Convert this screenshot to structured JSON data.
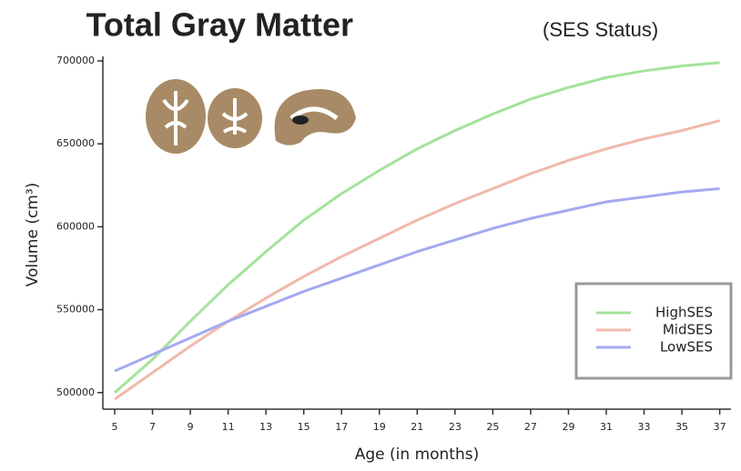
{
  "chart_data": {
    "type": "line",
    "title": "Total Gray Matter",
    "subtitle": "(SES Status)",
    "x_label": "Age (in months)",
    "y_label": "Volume (cm³)",
    "x": [
      5,
      7,
      9,
      11,
      13,
      15,
      17,
      19,
      21,
      23,
      25,
      27,
      29,
      31,
      33,
      35,
      37
    ],
    "series": [
      {
        "name": "HighSES",
        "color": "#a3e39b",
        "values": [
          500000,
          520000,
          543000,
          565000,
          585000,
          604000,
          620000,
          634000,
          647000,
          658000,
          668000,
          677000,
          684000,
          690000,
          694000,
          697000,
          699000
        ]
      },
      {
        "name": "MidSES",
        "color": "#f0b9aa",
        "values": [
          496000,
          512000,
          528000,
          543000,
          557000,
          570000,
          582000,
          593000,
          604000,
          614000,
          623000,
          632000,
          640000,
          647000,
          653000,
          658000,
          664000
        ]
      },
      {
        "name": "LowSES",
        "color": "#a4a9f0",
        "values": [
          513000,
          523000,
          533000,
          543000,
          552000,
          561000,
          569000,
          577000,
          585000,
          592000,
          599000,
          605000,
          610000,
          615000,
          618000,
          621000,
          623000
        ]
      }
    ],
    "xlim": [
      4.5,
      37.5
    ],
    "xticks": [
      5,
      7,
      9,
      11,
      13,
      15,
      17,
      19,
      21,
      23,
      25,
      27,
      29,
      31,
      33,
      35,
      37
    ],
    "ylim": [
      490000,
      700000
    ],
    "yticks": [
      500000,
      550000,
      600000,
      650000,
      700000
    ],
    "grid": false,
    "legend": "lower right"
  }
}
